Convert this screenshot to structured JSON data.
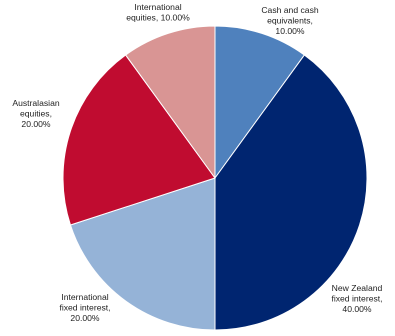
{
  "chart_data": {
    "type": "pie",
    "start": "top",
    "direction": "clockwise",
    "slices": [
      {
        "label_lines": [
          "Cash and cash",
          "equivalents,",
          "10.00%"
        ],
        "value": 10.0,
        "color": "#4f81bd"
      },
      {
        "label_lines": [
          "New Zealand",
          "fixed interest,",
          "40.00%"
        ],
        "value": 40.0,
        "color": "#002570"
      },
      {
        "label_lines": [
          "International",
          "fixed interest,",
          "20.00%"
        ],
        "value": 20.0,
        "color": "#95b3d7"
      },
      {
        "label_lines": [
          "Australasian",
          "equities,",
          "20.00%"
        ],
        "value": 20.0,
        "color": "#c00c30"
      },
      {
        "label_lines": [
          "International",
          "equities, 10.00%"
        ],
        "value": 10.0,
        "color": "#d99594"
      }
    ]
  }
}
